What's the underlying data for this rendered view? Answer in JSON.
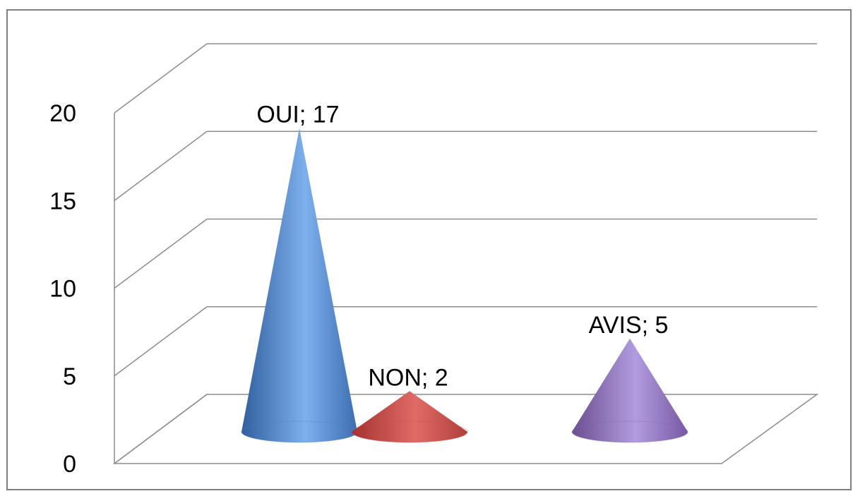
{
  "chart_data": {
    "type": "bar",
    "style": "3d-cone",
    "title": "",
    "xlabel": "",
    "ylabel": "",
    "categories": [
      "OUI",
      "NON",
      "AVIS"
    ],
    "values": [
      17,
      2,
      5
    ],
    "data_labels": [
      "OUI; 17",
      "NON; 2",
      "AVIS; 5"
    ],
    "yticks": [
      "0",
      "5",
      "10",
      "15",
      "20"
    ],
    "ylim": [
      0,
      20
    ],
    "grid": true,
    "legend": "none",
    "colors": {
      "OUI": "#4f81bd",
      "NON": "#c0504d",
      "AVIS": "#8064a2",
      "grid": "#8c8c8c",
      "border": "#7f7f7f"
    }
  }
}
